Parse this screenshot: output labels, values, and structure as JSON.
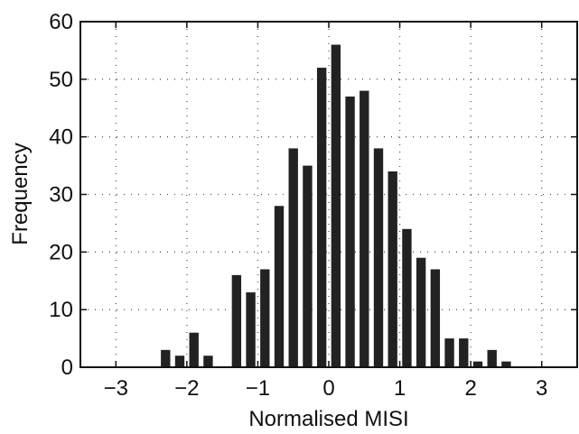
{
  "chart_data": {
    "type": "bar",
    "title": "",
    "xlabel": "Normalised MISI",
    "ylabel": "Frequency",
    "xlim": [
      -3.5,
      3.5
    ],
    "ylim": [
      0,
      60
    ],
    "grid": true,
    "bar_color": "#222222",
    "bin_width": 0.2,
    "x": [
      -2.3,
      -2.1,
      -1.9,
      -1.7,
      -1.5,
      -1.3,
      -1.1,
      -0.9,
      -0.7,
      -0.5,
      -0.3,
      -0.1,
      0.1,
      0.3,
      0.5,
      0.7,
      0.9,
      1.1,
      1.3,
      1.5,
      1.7,
      1.9,
      2.1,
      2.3,
      2.5,
      2.7,
      2.9,
      3.1,
      3.3
    ],
    "values": [
      3,
      2,
      6,
      2,
      0,
      16,
      13,
      17,
      28,
      38,
      35,
      52,
      56,
      47,
      48,
      38,
      34,
      24,
      19,
      17,
      5,
      5,
      1,
      3,
      1,
      0,
      0,
      0,
      0
    ],
    "xticks": [
      -3,
      -2,
      -1,
      0,
      1,
      2,
      3
    ],
    "xtick_labels": [
      "−3",
      "−2",
      "−1",
      "0",
      "1",
      "2",
      "3"
    ],
    "yticks": [
      0,
      10,
      20,
      30,
      40,
      50,
      60
    ],
    "ytick_labels": [
      "0",
      "10",
      "20",
      "30",
      "40",
      "50",
      "60"
    ]
  }
}
